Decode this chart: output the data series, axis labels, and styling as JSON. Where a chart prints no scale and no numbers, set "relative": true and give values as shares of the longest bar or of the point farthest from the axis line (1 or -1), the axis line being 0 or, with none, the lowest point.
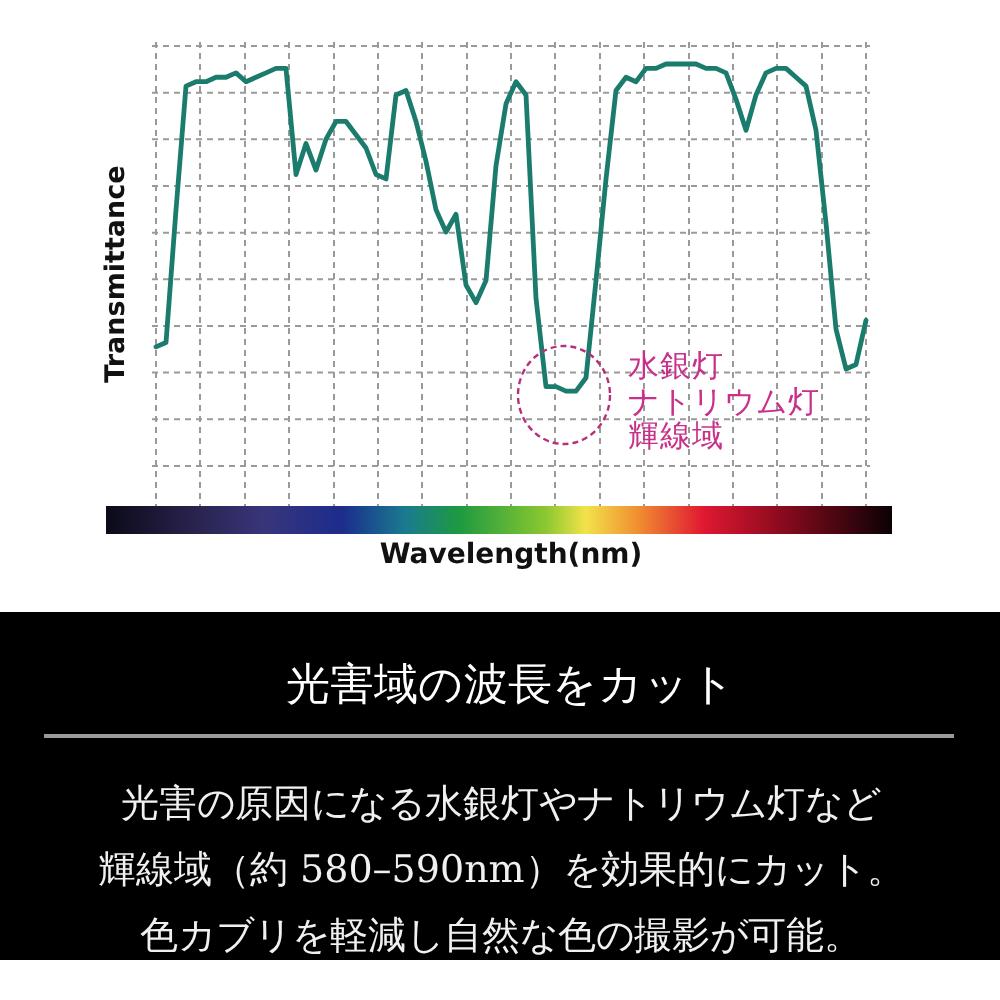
{
  "chart_data": {
    "type": "line",
    "relative": true,
    "title": "光害域の波長をカット",
    "xlabel": "Wavelength(nm)",
    "ylabel": "Transmittance",
    "categories": [
      null,
      null,
      null,
      null,
      null,
      null,
      null,
      null,
      null,
      null,
      null,
      null,
      null,
      null,
      null,
      null,
      null,
      null,
      null,
      null,
      null,
      null,
      null,
      null,
      null,
      null,
      null,
      null,
      null,
      null,
      null,
      null,
      null,
      null,
      null,
      null,
      null,
      null,
      null,
      null,
      null,
      null,
      null,
      null,
      null,
      null,
      null,
      null,
      null,
      null,
      null,
      null,
      null,
      null,
      null,
      null,
      null,
      null,
      null,
      null,
      null,
      null,
      null,
      null,
      null,
      null,
      null,
      null,
      null,
      null,
      null,
      null
    ],
    "values": [
      0.36,
      0.37,
      0.67,
      0.95,
      0.96,
      0.96,
      0.97,
      0.97,
      0.98,
      0.96,
      0.97,
      0.98,
      0.99,
      0.99,
      0.75,
      0.82,
      0.76,
      0.83,
      0.87,
      0.87,
      0.84,
      0.81,
      0.75,
      0.74,
      0.93,
      0.94,
      0.87,
      0.78,
      0.67,
      0.62,
      0.66,
      0.5,
      0.46,
      0.51,
      0.77,
      0.91,
      0.96,
      0.93,
      0.47,
      0.27,
      0.27,
      0.26,
      0.26,
      0.29,
      0.51,
      0.74,
      0.94,
      0.97,
      0.96,
      0.99,
      0.99,
      1,
      1,
      1,
      1,
      0.99,
      0.99,
      0.98,
      0.92,
      0.85,
      0.93,
      0.98,
      0.99,
      0.99,
      0.97,
      0.95,
      0.85,
      0.64,
      0.4,
      0.31,
      0.32,
      0.42
    ],
    "color": "#1b7c6d",
    "grid": true,
    "marker": "none",
    "line_style": "solid",
    "annotations": [
      "水銀灯",
      "ナトリウム灯",
      "輝線域",
      "光害の原因になる水銀灯やナトリウム灯など輝線域（約 580–590nm）を効果的にカット。色カブリを軽減し自然な色の撮影が可能。"
    ]
  }
}
